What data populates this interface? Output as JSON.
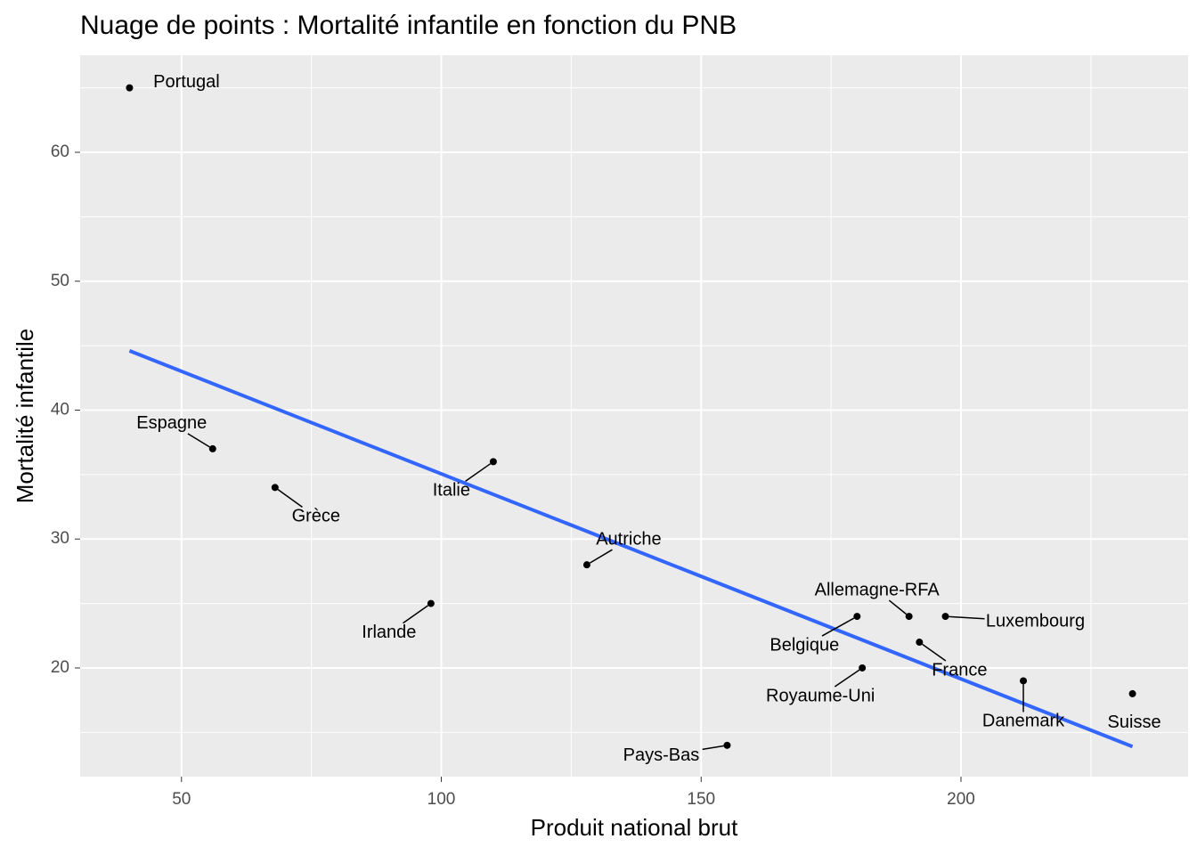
{
  "chart_data": {
    "type": "scatter",
    "title": "Nuage de points : Mortalité infantile en fonction du PNB",
    "xlabel": "Produit national brut",
    "ylabel": "Mortalité infantile",
    "labels": [
      "Portugal",
      "Espagne",
      "Grèce",
      "Irlande",
      "Italie",
      "Autriche",
      "Pays-Bas",
      "Belgique",
      "Allemagne-RFA",
      "Royaume-Uni",
      "France",
      "Luxembourg",
      "Danemark",
      "Suisse"
    ],
    "x": [
      40,
      56,
      68,
      98,
      110,
      128,
      155,
      180,
      190,
      181,
      192,
      197,
      212,
      233
    ],
    "y": [
      65,
      37,
      34,
      25,
      36,
      28,
      14,
      24,
      24,
      20,
      22,
      24,
      19,
      18
    ],
    "color": "#000000",
    "trend": {
      "x": [
        40,
        233
      ],
      "y": [
        44.6,
        13.9
      ],
      "color": "#3366ff"
    },
    "xlim": [
      30.5,
      243.7
    ],
    "ylim": [
      11.57,
      67.53
    ],
    "xticks": [
      50,
      100,
      150,
      200
    ],
    "yticks": [
      20,
      30,
      40,
      50,
      60
    ],
    "grid": true
  }
}
